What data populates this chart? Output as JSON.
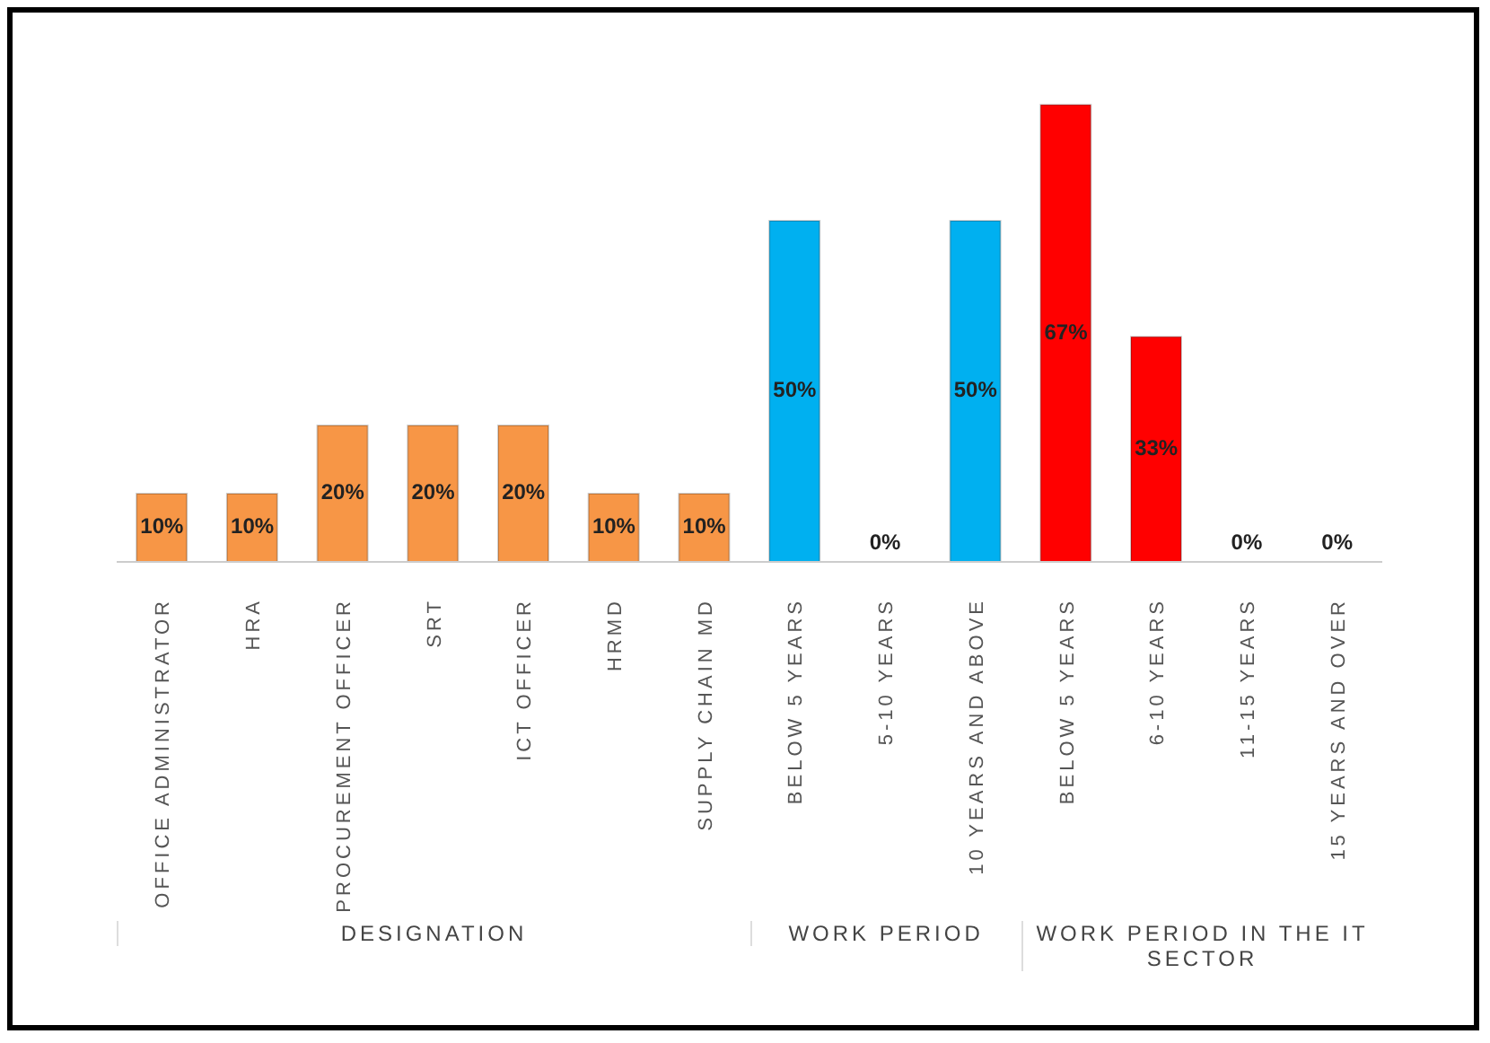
{
  "chart_data": {
    "type": "bar",
    "categories": [
      "OFFICE ADMINISTRATOR",
      "HRA",
      "PROCUREMENT OFFICER",
      "SRT",
      "ICT OFFICER",
      "HRMD",
      "SUPPLY CHAIN MD",
      "BELOW 5 YEARS",
      "5-10 YEARS",
      "10 YEARS AND ABOVE",
      "BELOW 5 YEARS",
      "6-10 YEARS",
      "11-15 YEARS",
      "15 YEARS AND OVER"
    ],
    "values": [
      10,
      10,
      20,
      20,
      20,
      10,
      10,
      50,
      0,
      50,
      67,
      33,
      0,
      0
    ],
    "value_labels": [
      "10%",
      "10%",
      "20%",
      "20%",
      "20%",
      "10%",
      "10%",
      "50%",
      "0%",
      "50%",
      "67%",
      "33%",
      "0%",
      "0%"
    ],
    "colors": [
      "#f79646",
      "#f79646",
      "#f79646",
      "#f79646",
      "#f79646",
      "#f79646",
      "#f79646",
      "#00b0f0",
      "#00b0f0",
      "#00b0f0",
      "#ff0000",
      "#ff0000",
      "#ff0000",
      "#ff0000"
    ],
    "annotations": [
      "DESIGNATION",
      "WORK PERIOD",
      "WORK PERIOD IN THE IT SECTOR"
    ],
    "grid": false
  }
}
